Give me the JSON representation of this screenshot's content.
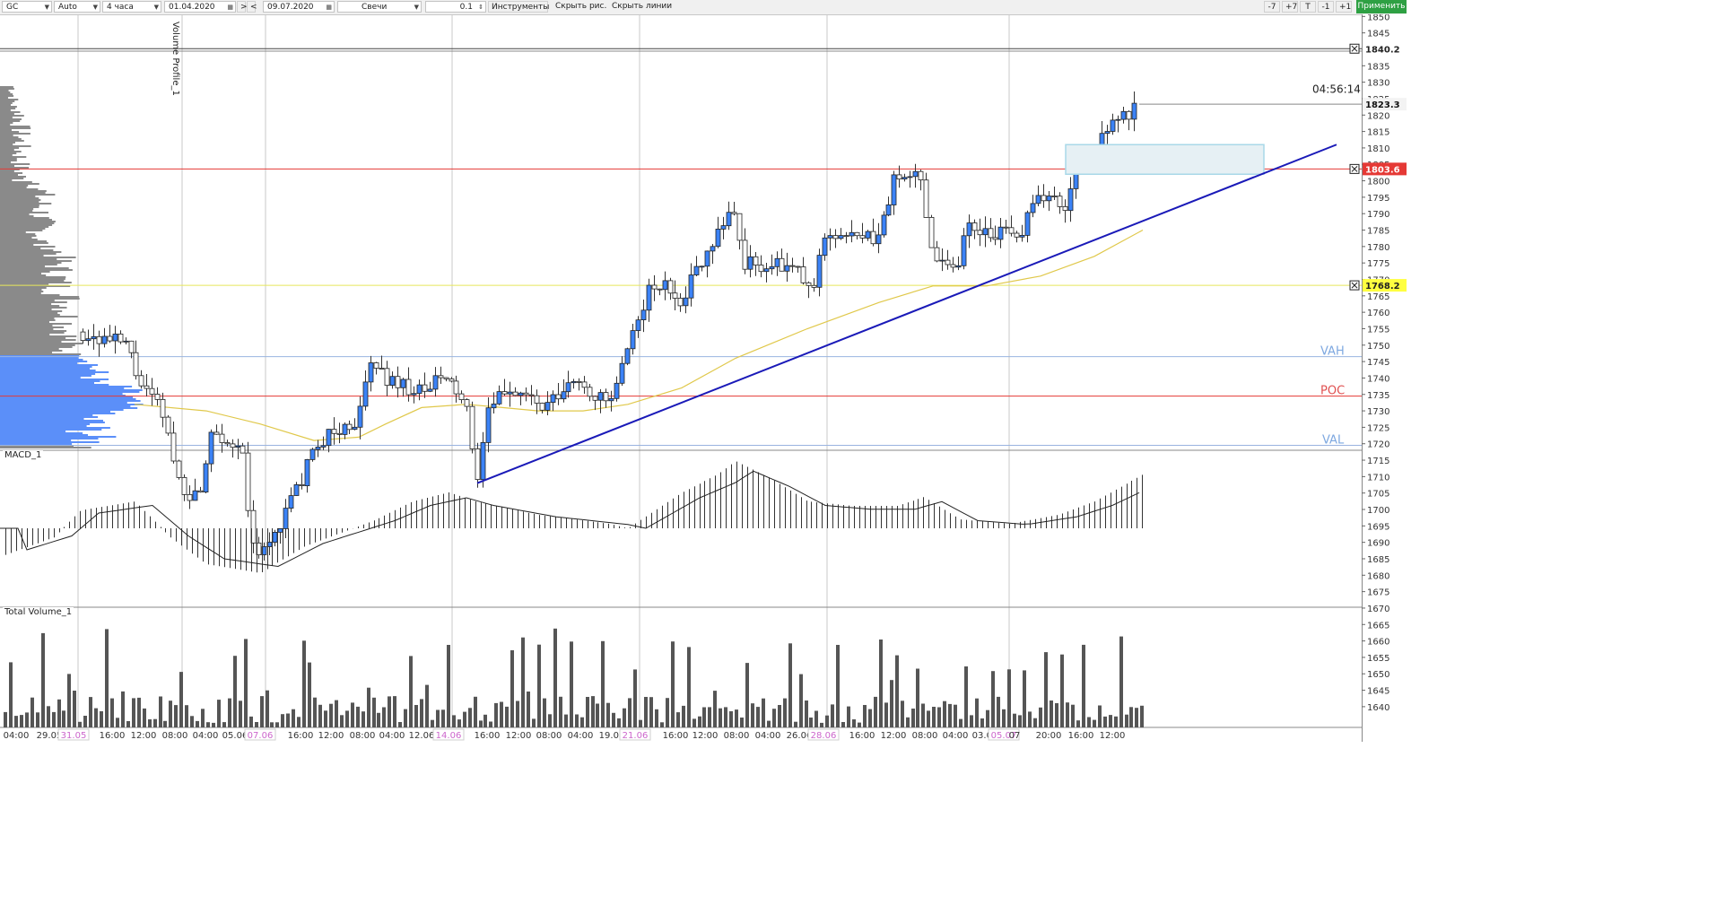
{
  "toolbar": {
    "symbol": "GC",
    "auto": "Auto",
    "timeframe": "4 часа",
    "date_from": "01.04.2020",
    "nav_next": ">",
    "nav_prev": "<",
    "date_to": "09.07.2020",
    "chart_type": "Свечи",
    "step": "0.1",
    "tools": "Инструменты",
    "hide_drawings": "Скрыть рис.",
    "hide_lines": "Скрыть линии",
    "btn_minus7": "-7",
    "btn_plus7": "+7",
    "btn_t": "T",
    "btn_minus1": "-1",
    "btn_plus1": "+1",
    "apply": "Применить"
  },
  "panels": {
    "volume_profile": "Volume Profile_1",
    "macd": "MACD_1",
    "total_volume": "Total Volume_1"
  },
  "price_axis": {
    "ticks": [
      "1850",
      "1845",
      "1840",
      "1835",
      "1830",
      "1825",
      "1820",
      "1815",
      "1810",
      "1805",
      "1800",
      "1795",
      "1790",
      "1785",
      "1780",
      "1775",
      "1770",
      "1765",
      "1760",
      "1755",
      "1750",
      "1745",
      "1740",
      "1735",
      "1730",
      "1725",
      "1720",
      "1715",
      "1710",
      "1705",
      "1700",
      "1695",
      "1690",
      "1685",
      "1680",
      "1675",
      "1670",
      "1665",
      "1660",
      "1655",
      "1650",
      "1645",
      "1640"
    ],
    "marker_top": "1840.2",
    "marker_last": "1823.3",
    "marker_red": "1803.6",
    "marker_yellow": "1768.2",
    "countdown": "04:56:14"
  },
  "levels": {
    "vah": "VAH",
    "poc": "POC",
    "val": "VAL"
  },
  "time_axis": {
    "labels": [
      "04:00",
      "29.05",
      "31.05",
      "16:00",
      "12:00",
      "08:00",
      "04:00",
      "05.06",
      "07.06",
      "16:00",
      "12:00",
      "08:00",
      "04:00",
      "12.06",
      "14.06",
      "16:00",
      "12:00",
      "08:00",
      "04:00",
      "19.06",
      "21.06",
      "16:00",
      "12:00",
      "08:00",
      "04:00",
      "26.06",
      "28.06",
      "16:00",
      "12:00",
      "08:00",
      "04:00",
      "03.07",
      "05.07",
      "07",
      "20:00",
      "16:00",
      "12:00"
    ],
    "highlighted": [
      "31.05",
      "07.06",
      "14.06",
      "21.06",
      "28.06",
      "05.07"
    ]
  },
  "colors": {
    "bull": "#3b82f6",
    "bear": "#ffffff",
    "profile_grey": "#8a8a8a",
    "profile_blue": "#5b8ff9",
    "red_level": "#e53935",
    "yellow_level": "#e8e85a",
    "ma": "#e0c84a",
    "trend": "#1a1ab8",
    "level_text": "#7ea8e0",
    "poc_text": "#e05050",
    "date_highlight": "#cc66cc",
    "apply_bg": "#2ea043"
  }
}
